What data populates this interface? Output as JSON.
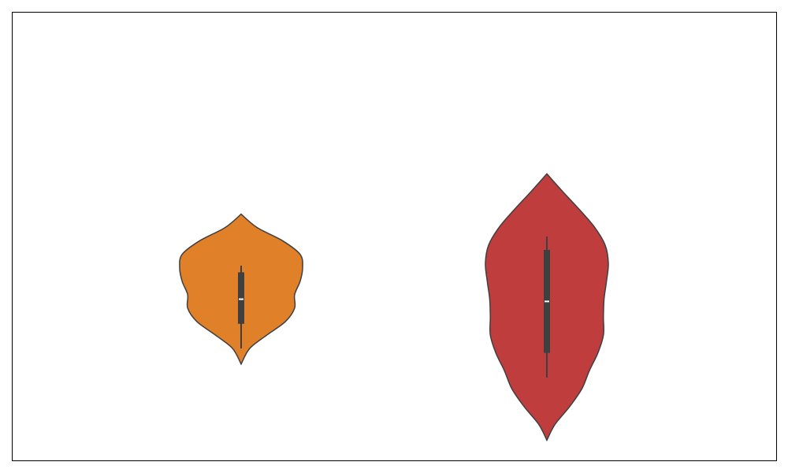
{
  "chart_data": {
    "type": "violin",
    "title": "",
    "xlabel": "",
    "ylabel": "",
    "axes_visible": false,
    "grid": false,
    "ylim": [
      0,
      100
    ],
    "series": [
      {
        "color": "#e08029",
        "min": 21.5,
        "max": 55,
        "q1": 30.5,
        "median": 36,
        "q3": 42,
        "whisker_low": 25,
        "whisker_high": 43.5,
        "density": [
          [
            21.5,
            0
          ],
          [
            25,
            0.14
          ],
          [
            28,
            0.42
          ],
          [
            31,
            0.72
          ],
          [
            34,
            0.87
          ],
          [
            37,
            0.87
          ],
          [
            40,
            0.96
          ],
          [
            43,
            1.0
          ],
          [
            46,
            0.96
          ],
          [
            49,
            0.68
          ],
          [
            52,
            0.26
          ],
          [
            55,
            0
          ]
        ]
      },
      {
        "color": "#c03d3e",
        "min": 4.5,
        "max": 64,
        "q1": 24,
        "median": 35.5,
        "q3": 47,
        "whisker_low": 18.5,
        "whisker_high": 50,
        "density": [
          [
            4.5,
            0
          ],
          [
            8,
            0.13
          ],
          [
            12,
            0.37
          ],
          [
            16,
            0.57
          ],
          [
            20,
            0.69
          ],
          [
            24,
            0.83
          ],
          [
            28,
            0.92
          ],
          [
            32,
            0.92
          ],
          [
            36,
            0.93
          ],
          [
            40,
            0.97
          ],
          [
            44,
            1.0
          ],
          [
            48,
            0.95
          ],
          [
            52,
            0.78
          ],
          [
            56,
            0.53
          ],
          [
            60,
            0.26
          ],
          [
            64,
            0
          ]
        ]
      }
    ]
  }
}
